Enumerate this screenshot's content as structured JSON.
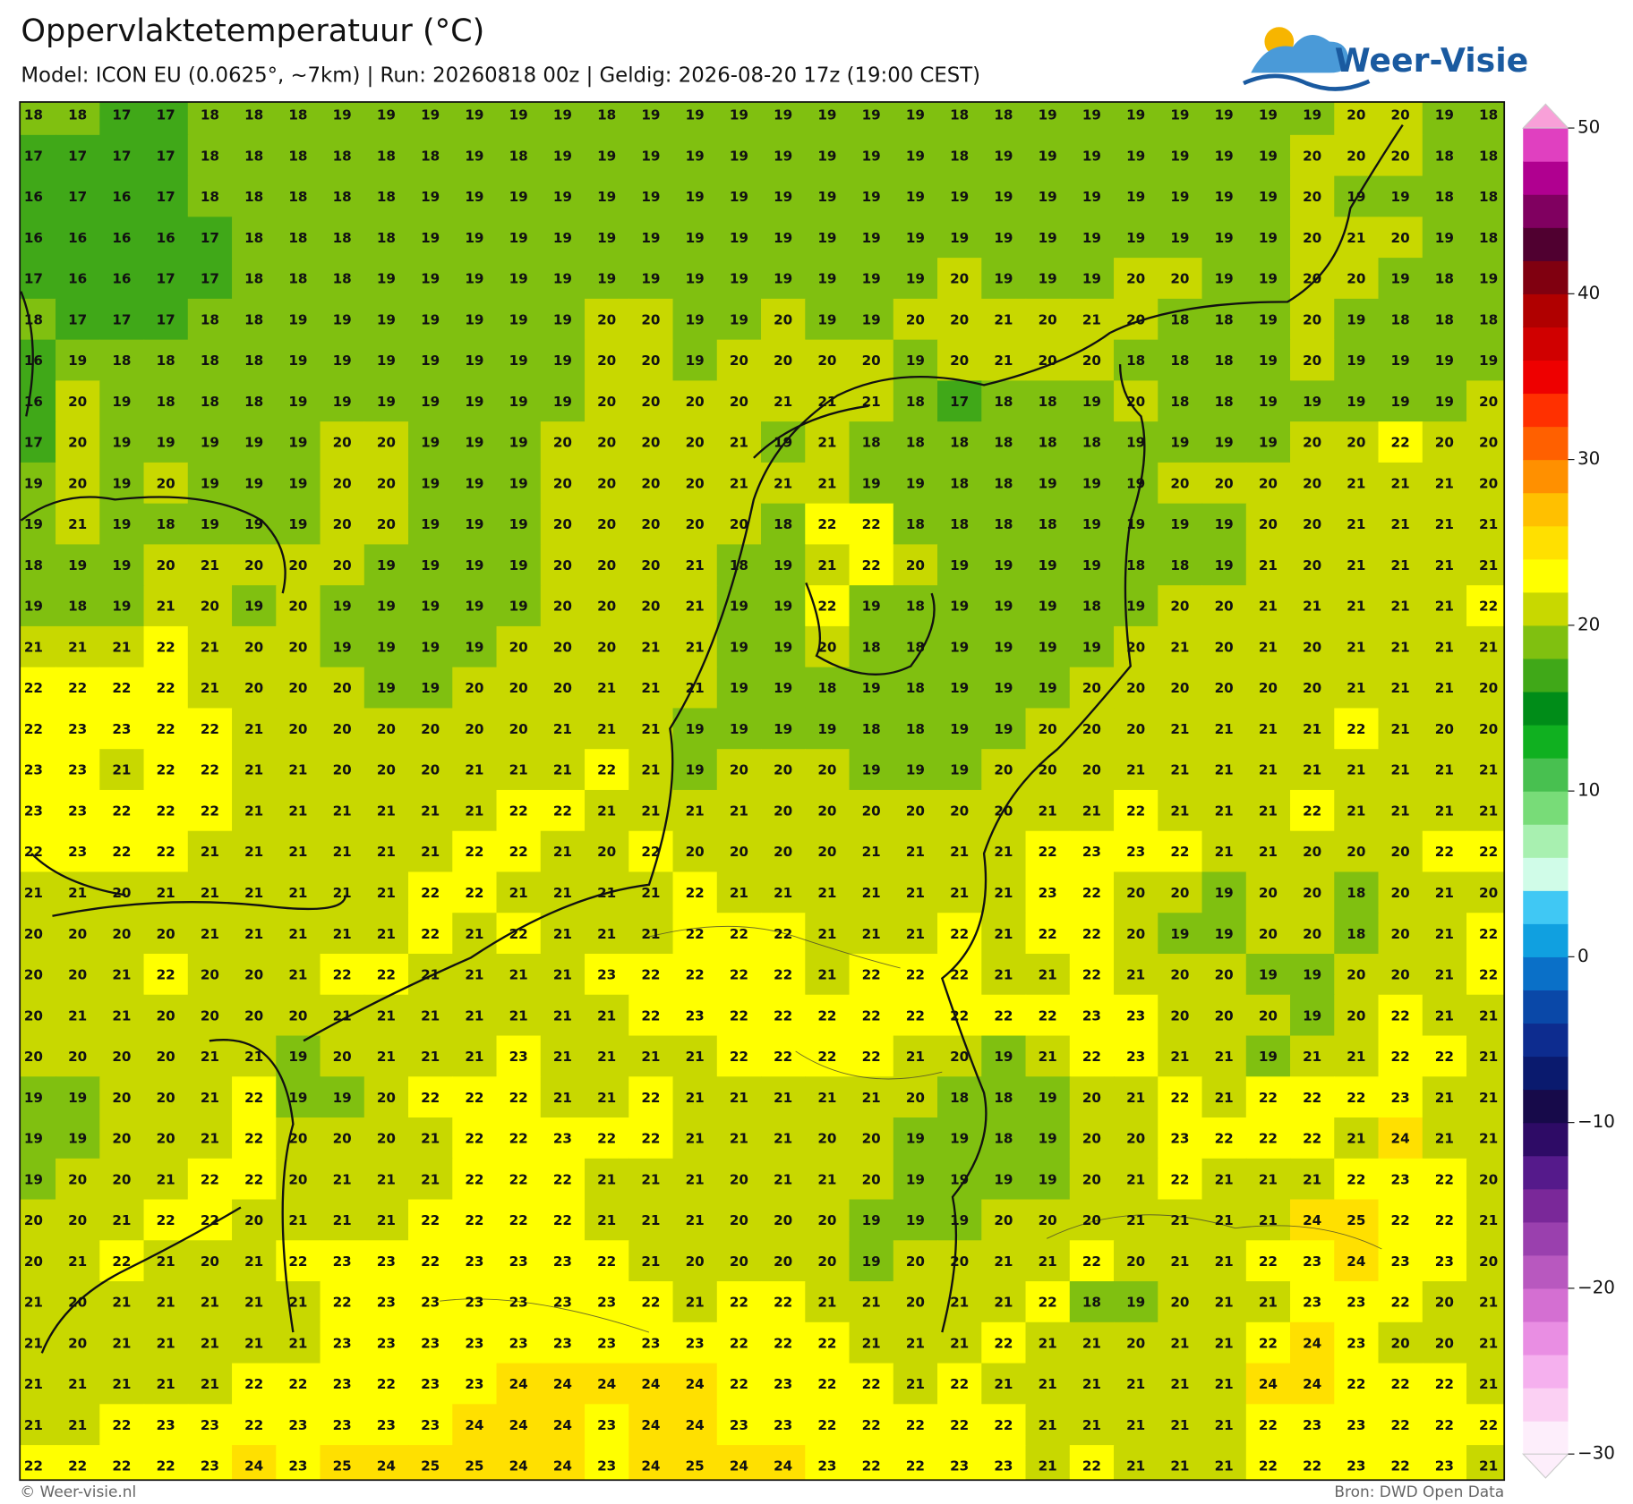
{
  "header": {
    "title": "Oppervlaktetemperatuur (°C)",
    "subtitle": "Model: ICON EU (0.0625°, ~7km)  |  Run: 20260818 00z  |  Geldig: 2026-08-20 17z (19:00 CEST)",
    "logo": "Weer-Visie"
  },
  "grid": {
    "rows": [
      [
        18,
        18,
        17,
        17,
        18,
        18,
        18,
        19,
        19,
        19,
        19,
        19,
        19,
        18,
        19,
        19,
        19,
        19,
        19,
        19,
        19,
        18,
        18,
        19,
        19,
        19,
        19,
        19,
        19,
        19,
        20,
        20,
        19,
        18
      ],
      [
        17,
        17,
        17,
        17,
        18,
        18,
        18,
        18,
        18,
        18,
        19,
        18,
        19,
        19,
        19,
        19,
        19,
        19,
        19,
        19,
        19,
        18,
        19,
        19,
        19,
        19,
        19,
        19,
        19,
        20,
        20,
        20,
        18,
        18
      ],
      [
        16,
        17,
        16,
        17,
        18,
        18,
        18,
        18,
        18,
        19,
        19,
        19,
        19,
        19,
        19,
        19,
        19,
        19,
        19,
        19,
        19,
        19,
        19,
        19,
        19,
        19,
        19,
        19,
        19,
        20,
        19,
        19,
        18,
        18
      ],
      [
        16,
        16,
        16,
        16,
        17,
        18,
        18,
        18,
        18,
        19,
        19,
        19,
        19,
        19,
        19,
        19,
        19,
        19,
        19,
        19,
        19,
        19,
        19,
        19,
        19,
        19,
        19,
        19,
        19,
        20,
        21,
        20,
        19,
        18
      ],
      [
        17,
        16,
        16,
        17,
        17,
        18,
        18,
        18,
        19,
        19,
        19,
        19,
        19,
        19,
        19,
        19,
        19,
        19,
        19,
        19,
        19,
        20,
        19,
        19,
        19,
        20,
        20,
        19,
        19,
        20,
        20,
        19,
        18,
        19
      ],
      [
        18,
        17,
        17,
        17,
        18,
        18,
        19,
        19,
        19,
        19,
        19,
        19,
        19,
        20,
        20,
        19,
        19,
        20,
        19,
        19,
        20,
        20,
        21,
        20,
        21,
        20,
        18,
        18,
        19,
        20,
        19,
        18,
        18,
        18
      ],
      [
        16,
        19,
        18,
        18,
        18,
        18,
        19,
        19,
        19,
        19,
        19,
        19,
        19,
        20,
        20,
        19,
        20,
        20,
        20,
        20,
        19,
        20,
        21,
        20,
        20,
        18,
        18,
        18,
        19,
        20,
        19,
        19,
        19,
        19
      ],
      [
        16,
        20,
        19,
        18,
        18,
        18,
        19,
        19,
        19,
        19,
        19,
        19,
        19,
        20,
        20,
        20,
        20,
        21,
        21,
        21,
        18,
        17,
        18,
        18,
        19,
        20,
        18,
        18,
        19,
        19,
        19,
        19,
        19,
        20
      ],
      [
        17,
        20,
        19,
        19,
        19,
        19,
        19,
        20,
        20,
        19,
        19,
        19,
        20,
        20,
        20,
        20,
        21,
        19,
        21,
        18,
        18,
        18,
        18,
        18,
        18,
        19,
        19,
        19,
        19,
        20,
        20,
        22,
        20,
        20
      ],
      [
        19,
        20,
        19,
        20,
        19,
        19,
        19,
        20,
        20,
        19,
        19,
        19,
        20,
        20,
        20,
        20,
        21,
        21,
        21,
        19,
        19,
        18,
        18,
        19,
        19,
        19,
        20,
        20,
        20,
        20,
        21,
        21,
        21,
        20
      ],
      [
        19,
        21,
        19,
        18,
        19,
        19,
        19,
        20,
        20,
        19,
        19,
        19,
        20,
        20,
        20,
        20,
        20,
        18,
        22,
        22,
        18,
        18,
        18,
        18,
        19,
        19,
        19,
        19,
        20,
        20,
        21,
        21,
        21,
        21
      ],
      [
        18,
        19,
        19,
        20,
        21,
        20,
        20,
        20,
        19,
        19,
        19,
        19,
        20,
        20,
        20,
        21,
        18,
        19,
        21,
        22,
        20,
        19,
        19,
        19,
        19,
        18,
        18,
        19,
        21,
        20,
        21,
        21,
        21,
        21
      ],
      [
        19,
        18,
        19,
        21,
        20,
        19,
        20,
        19,
        19,
        19,
        19,
        19,
        20,
        20,
        20,
        21,
        19,
        19,
        22,
        19,
        18,
        19,
        19,
        19,
        18,
        19,
        20,
        20,
        21,
        21,
        21,
        21,
        21,
        22
      ],
      [
        21,
        21,
        21,
        22,
        21,
        20,
        20,
        19,
        19,
        19,
        19,
        20,
        20,
        20,
        21,
        21,
        19,
        19,
        20,
        18,
        18,
        19,
        19,
        19,
        19,
        20,
        21,
        20,
        21,
        20,
        21,
        21,
        21,
        21
      ],
      [
        22,
        22,
        22,
        22,
        21,
        20,
        20,
        20,
        19,
        19,
        20,
        20,
        20,
        21,
        21,
        21,
        19,
        19,
        18,
        19,
        18,
        19,
        19,
        19,
        20,
        20,
        20,
        20,
        20,
        20,
        21,
        21,
        21,
        20
      ],
      [
        22,
        23,
        23,
        22,
        22,
        21,
        20,
        20,
        20,
        20,
        20,
        20,
        21,
        21,
        21,
        19,
        19,
        19,
        19,
        18,
        18,
        19,
        19,
        20,
        20,
        20,
        21,
        21,
        21,
        21,
        22,
        21,
        20,
        20
      ],
      [
        23,
        23,
        21,
        22,
        22,
        21,
        21,
        20,
        20,
        20,
        21,
        21,
        21,
        22,
        21,
        19,
        20,
        20,
        20,
        19,
        19,
        19,
        20,
        20,
        20,
        21,
        21,
        21,
        21,
        21,
        21,
        21,
        21,
        21
      ],
      [
        23,
        23,
        22,
        22,
        22,
        21,
        21,
        21,
        21,
        21,
        21,
        22,
        22,
        21,
        21,
        21,
        21,
        20,
        20,
        20,
        20,
        20,
        20,
        21,
        21,
        22,
        21,
        21,
        21,
        22,
        21,
        21,
        21,
        21
      ],
      [
        22,
        23,
        22,
        22,
        21,
        21,
        21,
        21,
        21,
        21,
        22,
        22,
        21,
        20,
        22,
        20,
        20,
        20,
        20,
        21,
        21,
        21,
        21,
        22,
        23,
        23,
        22,
        21,
        21,
        20,
        20,
        20,
        22,
        22
      ],
      [
        21,
        21,
        20,
        21,
        21,
        21,
        21,
        21,
        21,
        22,
        22,
        21,
        21,
        21,
        21,
        22,
        21,
        21,
        21,
        21,
        21,
        21,
        21,
        23,
        22,
        20,
        20,
        19,
        20,
        20,
        18,
        20,
        21,
        20
      ],
      [
        20,
        20,
        20,
        20,
        21,
        21,
        21,
        21,
        21,
        22,
        21,
        22,
        21,
        21,
        21,
        22,
        22,
        22,
        21,
        21,
        21,
        22,
        21,
        22,
        22,
        20,
        19,
        19,
        20,
        20,
        18,
        20,
        21,
        22
      ],
      [
        20,
        20,
        21,
        22,
        20,
        20,
        21,
        22,
        22,
        21,
        21,
        21,
        21,
        23,
        22,
        22,
        22,
        22,
        21,
        22,
        22,
        22,
        21,
        21,
        22,
        21,
        20,
        20,
        19,
        19,
        20,
        20,
        21,
        22
      ],
      [
        20,
        21,
        21,
        20,
        20,
        20,
        20,
        21,
        21,
        21,
        21,
        21,
        21,
        21,
        22,
        23,
        22,
        22,
        22,
        22,
        22,
        22,
        22,
        22,
        23,
        23,
        20,
        20,
        20,
        19,
        20,
        22,
        21,
        21
      ],
      [
        20,
        20,
        20,
        20,
        21,
        21,
        19,
        20,
        21,
        21,
        21,
        23,
        21,
        21,
        21,
        21,
        22,
        22,
        22,
        22,
        21,
        20,
        19,
        21,
        22,
        23,
        21,
        21,
        19,
        21,
        21,
        22,
        22,
        21
      ],
      [
        19,
        19,
        20,
        20,
        21,
        22,
        19,
        19,
        20,
        22,
        22,
        22,
        21,
        21,
        22,
        21,
        21,
        21,
        21,
        21,
        20,
        18,
        18,
        19,
        20,
        21,
        22,
        21,
        22,
        22,
        22,
        23,
        21,
        21
      ],
      [
        19,
        19,
        20,
        20,
        21,
        22,
        20,
        20,
        20,
        21,
        22,
        22,
        23,
        22,
        22,
        21,
        21,
        21,
        20,
        20,
        19,
        19,
        18,
        19,
        20,
        20,
        23,
        22,
        22,
        22,
        21,
        24,
        21,
        21
      ],
      [
        19,
        20,
        20,
        21,
        22,
        22,
        20,
        21,
        21,
        21,
        22,
        22,
        22,
        21,
        21,
        21,
        20,
        21,
        21,
        20,
        19,
        19,
        19,
        19,
        20,
        21,
        22,
        21,
        21,
        21,
        22,
        23,
        22,
        20
      ],
      [
        20,
        20,
        21,
        22,
        22,
        20,
        21,
        21,
        21,
        22,
        22,
        22,
        22,
        21,
        21,
        21,
        20,
        20,
        20,
        19,
        19,
        19,
        20,
        20,
        20,
        21,
        21,
        21,
        21,
        24,
        25,
        22,
        22,
        21
      ],
      [
        20,
        21,
        22,
        21,
        20,
        21,
        22,
        23,
        23,
        22,
        23,
        23,
        23,
        22,
        21,
        20,
        20,
        20,
        20,
        19,
        20,
        20,
        21,
        21,
        22,
        20,
        21,
        21,
        22,
        23,
        24,
        23,
        23,
        20
      ],
      [
        21,
        20,
        21,
        21,
        21,
        21,
        21,
        22,
        23,
        23,
        23,
        23,
        23,
        23,
        22,
        21,
        22,
        22,
        21,
        21,
        20,
        21,
        21,
        22,
        18,
        19,
        20,
        21,
        21,
        23,
        23,
        22,
        20,
        21
      ],
      [
        21,
        20,
        21,
        21,
        21,
        21,
        21,
        23,
        23,
        23,
        23,
        23,
        23,
        23,
        23,
        23,
        22,
        22,
        22,
        21,
        21,
        21,
        22,
        21,
        21,
        20,
        21,
        21,
        22,
        24,
        23,
        20,
        20,
        21
      ],
      [
        21,
        21,
        21,
        21,
        21,
        22,
        22,
        23,
        22,
        23,
        23,
        24,
        24,
        24,
        24,
        24,
        22,
        23,
        22,
        22,
        21,
        22,
        21,
        21,
        21,
        21,
        21,
        21,
        24,
        24,
        22,
        22,
        22,
        21
      ],
      [
        21,
        21,
        22,
        23,
        23,
        22,
        23,
        23,
        23,
        23,
        24,
        24,
        24,
        23,
        24,
        24,
        23,
        23,
        22,
        22,
        22,
        22,
        22,
        21,
        21,
        21,
        21,
        21,
        22,
        23,
        23,
        22,
        22,
        22
      ],
      [
        22,
        22,
        22,
        22,
        23,
        24,
        23,
        25,
        24,
        25,
        25,
        24,
        24,
        23,
        24,
        25,
        24,
        24,
        23,
        22,
        22,
        23,
        23,
        21,
        22,
        21,
        21,
        21,
        22,
        22,
        23,
        22,
        23,
        21
      ]
    ]
  },
  "colorbar": {
    "levels": [
      -30,
      -28,
      -26,
      -24,
      -22,
      -20,
      -18,
      -16,
      -14,
      -12,
      -10,
      -8,
      -6,
      -4,
      -2,
      0,
      2,
      4,
      6,
      8,
      10,
      12,
      14,
      16,
      18,
      20,
      22,
      24,
      26,
      28,
      30,
      32,
      34,
      36,
      38,
      40,
      42,
      44,
      46,
      48,
      50
    ],
    "colors": [
      "#fdeefb",
      "#fbd0f3",
      "#f5b0ee",
      "#e98ee3",
      "#d46fd2",
      "#b858bf",
      "#9a40ae",
      "#7a2899",
      "#551a8b",
      "#2e0b66",
      "#170a4a",
      "#0a1a6e",
      "#0d2c8f",
      "#0a48a8",
      "#0a70c8",
      "#10a0e0",
      "#40c8f4",
      "#d0fce8",
      "#a8f0b0",
      "#78dc78",
      "#48c050",
      "#10b020",
      "#008c18",
      "#40a818",
      "#80c010",
      "#c8d800",
      "#ffff00",
      "#ffe000",
      "#ffc000",
      "#ff9000",
      "#ff6000",
      "#ff3000",
      "#ee0000",
      "#d00000",
      "#b00000",
      "#800010",
      "#500030",
      "#800060",
      "#b00090",
      "#e040c0",
      "#f8a0d8"
    ],
    "ticks": [
      {
        "value": -30,
        "label": "−30"
      },
      {
        "value": -20,
        "label": "−20"
      },
      {
        "value": -10,
        "label": "−10"
      },
      0,
      10,
      20,
      30,
      40,
      50
    ]
  },
  "footer": {
    "left": "© Weer-visie.nl",
    "right": "Bron: DWD Open Data"
  }
}
